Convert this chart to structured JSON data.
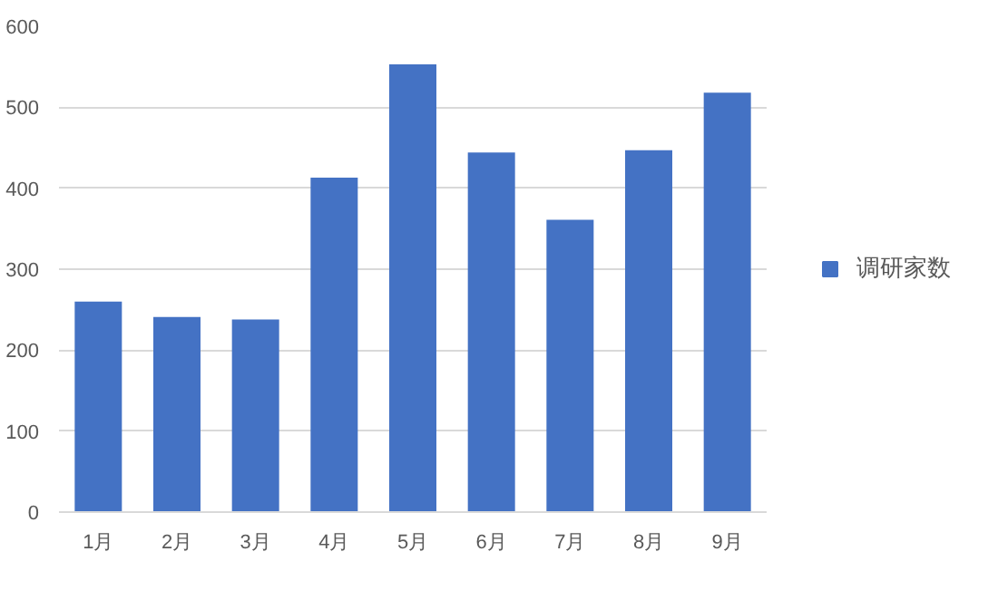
{
  "chart_data": {
    "type": "bar",
    "categories": [
      "1月",
      "2月",
      "3月",
      "4月",
      "5月",
      "6月",
      "7月",
      "8月",
      "9月"
    ],
    "series": [
      {
        "name": "调研家数",
        "color": "#4472c4",
        "values": [
          260,
          241,
          238,
          413,
          553,
          444,
          361,
          447,
          518
        ]
      }
    ],
    "ylim": [
      0,
      600
    ],
    "yticks": [
      0,
      100,
      200,
      300,
      400,
      500,
      600
    ],
    "grid": "y",
    "legend": "right"
  }
}
